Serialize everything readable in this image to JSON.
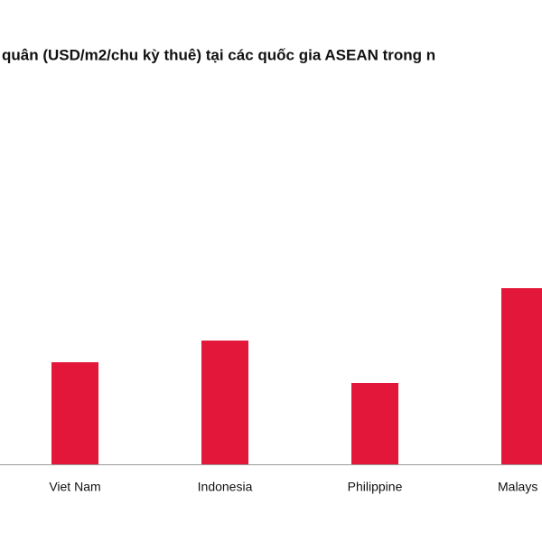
{
  "chart_data": {
    "type": "bar",
    "title": "quân (USD/m2/chu kỳ thuê) tại các quốc gia ASEAN trong n",
    "categories": [
      "Viet Nam",
      "Indonesia",
      "Philippine",
      "Malays"
    ],
    "values": [
      113,
      137,
      90,
      195
    ],
    "color": "#e3173a"
  }
}
